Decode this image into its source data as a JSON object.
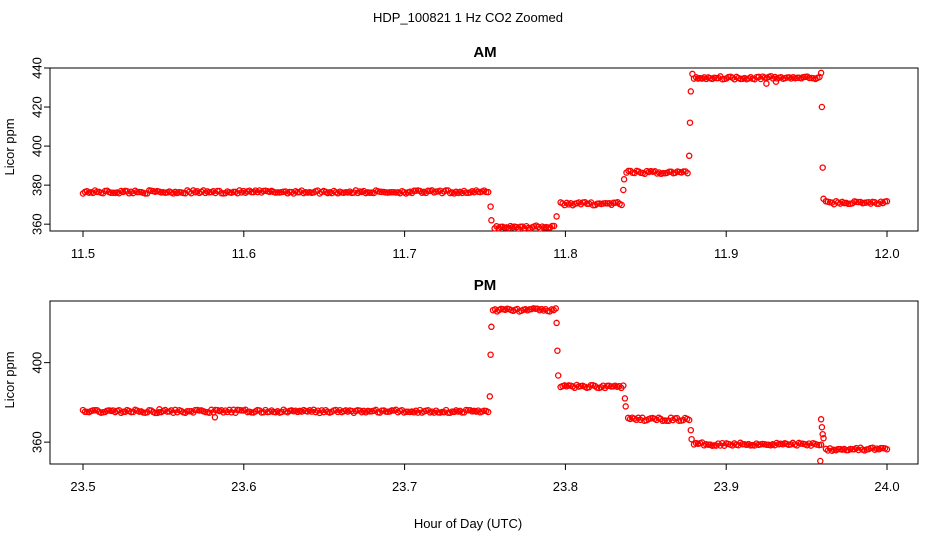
{
  "figure": {
    "title": "HDP_100821  1 Hz CO2 Zoomed",
    "xlabel": "Hour of Day (UTC)"
  },
  "colors": {
    "points": "#ff0000",
    "axis": "#000000",
    "background": "#ffffff"
  },
  "chart_data": [
    {
      "type": "scatter",
      "title": "AM",
      "xlabel": "",
      "ylabel": "Licor ppm",
      "xlim": [
        11.5,
        12.0
      ],
      "ylim": [
        356.5,
        440
      ],
      "xticks": [
        "11.5",
        "11.6",
        "11.7",
        "11.8",
        "11.9",
        "12.0"
      ],
      "yticks": [
        "360",
        "380",
        "400",
        "420",
        "440"
      ],
      "grid": false,
      "legend": "none",
      "segments": [
        {
          "x_start": 11.5,
          "x_end": 11.752,
          "y": 376.5
        },
        {
          "x_start": 11.756,
          "x_end": 11.793,
          "y": 358.5
        },
        {
          "x_start": 11.797,
          "x_end": 11.835,
          "y": 370.5
        },
        {
          "x_start": 11.838,
          "x_end": 11.876,
          "y": 386.5
        },
        {
          "x_start": 11.88,
          "x_end": 11.958,
          "y": 435.0
        },
        {
          "x_start": 11.962,
          "x_end": 12.0,
          "y": 371.0
        }
      ],
      "transitions": [
        {
          "x": 11.7535,
          "y": 369.0
        },
        {
          "x": 11.754,
          "y": 362.0
        },
        {
          "x": 11.7945,
          "y": 364.0
        },
        {
          "x": 11.836,
          "y": 377.5
        },
        {
          "x": 11.8365,
          "y": 383.0
        },
        {
          "x": 11.877,
          "y": 395.0
        },
        {
          "x": 11.8775,
          "y": 412.0
        },
        {
          "x": 11.878,
          "y": 428.0
        },
        {
          "x": 11.879,
          "y": 437.0
        },
        {
          "x": 11.925,
          "y": 432.0
        },
        {
          "x": 11.931,
          "y": 433.0
        },
        {
          "x": 11.959,
          "y": 437.5
        },
        {
          "x": 11.9595,
          "y": 420.0
        },
        {
          "x": 11.96,
          "y": 389.0
        },
        {
          "x": 11.9605,
          "y": 373.0
        }
      ]
    },
    {
      "type": "scatter",
      "title": "PM",
      "xlabel": "",
      "ylabel": "Licor ppm",
      "xlim": [
        23.5,
        24.0
      ],
      "ylim": [
        349,
        431
      ],
      "xticks": [
        "23.5",
        "23.6",
        "23.7",
        "23.8",
        "23.9",
        "24.0"
      ],
      "yticks": [
        "360",
        "400"
      ],
      "grid": false,
      "legend": "none",
      "segments": [
        {
          "x_start": 23.5,
          "x_end": 23.752,
          "y": 375.5
        },
        {
          "x_start": 23.755,
          "x_end": 23.794,
          "y": 426.5
        },
        {
          "x_start": 23.797,
          "x_end": 23.836,
          "y": 388.0
        },
        {
          "x_start": 23.839,
          "x_end": 23.877,
          "y": 371.5
        },
        {
          "x_start": 23.88,
          "x_end": 23.959,
          "y": 359.0
        },
        {
          "x_start": 23.962,
          "x_end": 24.0,
          "y": 356.5
        }
      ],
      "transitions": [
        {
          "x": 23.753,
          "y": 383.0
        },
        {
          "x": 23.7535,
          "y": 404.0
        },
        {
          "x": 23.754,
          "y": 418.0
        },
        {
          "x": 23.7945,
          "y": 420.0
        },
        {
          "x": 23.795,
          "y": 406.0
        },
        {
          "x": 23.7955,
          "y": 393.5
        },
        {
          "x": 23.837,
          "y": 382.0
        },
        {
          "x": 23.8375,
          "y": 378.0
        },
        {
          "x": 23.878,
          "y": 366.0
        },
        {
          "x": 23.8785,
          "y": 361.5
        },
        {
          "x": 23.5475,
          "y": 376.5
        },
        {
          "x": 23.582,
          "y": 372.5
        },
        {
          "x": 23.959,
          "y": 371.5
        },
        {
          "x": 23.9595,
          "y": 367.5
        },
        {
          "x": 23.96,
          "y": 364.0
        },
        {
          "x": 23.9605,
          "y": 362.0
        },
        {
          "x": 23.9585,
          "y": 350.5
        }
      ]
    }
  ]
}
